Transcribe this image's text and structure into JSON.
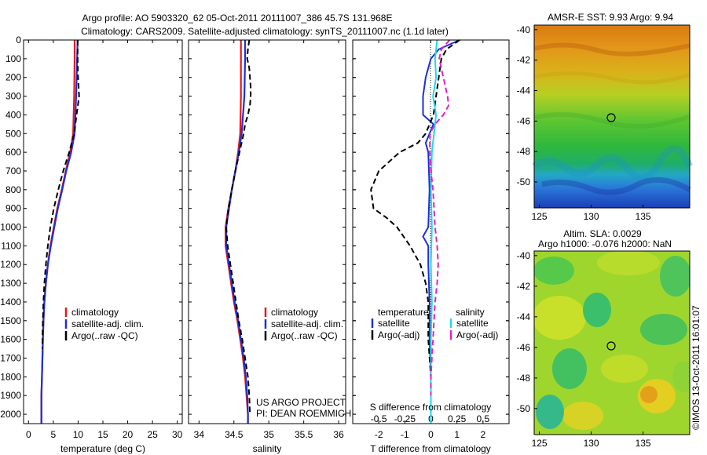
{
  "header": {
    "title_line1": "Argo profile: AO 5903320_62 05-Oct-2011 20111007_386 45.7S 131.968E",
    "title_line2": "Climatology: CARS2009. Satellite-adjusted climatology: synTS_20111007.nc (1.1d later)"
  },
  "colors": {
    "climatology": "#e41a1c",
    "satellite": "#1f2fd6",
    "argo": "#000000",
    "salinity_satellite": "#22d8e6",
    "salinity_argo": "#e020c8"
  },
  "annotations": {
    "project": "US ARGO PROJECT",
    "pi": "PI: DEAN ROEMMICH",
    "stamp": "©IMOS 13-Oct-2011 16:01:07"
  },
  "legend_profile": [
    "climatology",
    "satellite-adj. clim.",
    "Argo(..raw -QC)"
  ],
  "legend_diff": {
    "temperature_head": "temperature",
    "salinity_head": "salinity",
    "t_satellite": "satellite",
    "t_argo": "Argo(-adj)",
    "s_satellite": "satellite",
    "s_argo": "Argo(-adj)"
  },
  "maps": {
    "sst": {
      "title": "AMSR-E SST: 9.93 Argo: 9.94",
      "yticks": [
        "-40",
        "-42",
        "-44",
        "-46",
        "-48",
        "-50"
      ],
      "xticks": [
        "125",
        "130",
        "135"
      ]
    },
    "sla": {
      "title_line1": "Altim. SLA: 0.0029",
      "title_line2": "Argo h1000: -0.076 h2000: NaN",
      "yticks": [
        "-40",
        "-42",
        "-44",
        "-46",
        "-48",
        "-50"
      ],
      "xticks": [
        "125",
        "130",
        "135"
      ]
    }
  },
  "chart_data": [
    {
      "type": "line",
      "name": "temperature profile",
      "xlabel": "temperature (deg C)",
      "ylabel": "",
      "xlim": [
        -1,
        31
      ],
      "ylim": [
        2050,
        0
      ],
      "xticks": [
        0,
        5,
        10,
        15,
        20,
        25,
        30
      ],
      "yticks": [
        0,
        100,
        200,
        300,
        400,
        500,
        600,
        700,
        800,
        900,
        1000,
        1100,
        1200,
        1300,
        1400,
        1500,
        1600,
        1700,
        1800,
        1900,
        2000
      ],
      "series": [
        {
          "name": "climatology",
          "depth": [
            0,
            100,
            300,
            500,
            600,
            700,
            800,
            900,
            1000,
            1100,
            1200,
            1300,
            1400,
            1500,
            1600,
            1700,
            1800,
            1900,
            2000,
            2050
          ],
          "values": [
            9.3,
            9.3,
            9.2,
            9.0,
            8.4,
            7.5,
            6.7,
            5.8,
            5.1,
            4.4,
            3.9,
            3.5,
            3.2,
            3.0,
            2.9,
            2.8,
            2.7,
            2.6,
            2.6,
            2.6
          ]
        },
        {
          "name": "satellite-adj. clim.",
          "depth": [
            0,
            100,
            300,
            500,
            600,
            700,
            800,
            900,
            1000,
            1100,
            1200,
            1300,
            1400,
            1500,
            1600,
            1700,
            1800,
            1900,
            2000,
            2050
          ],
          "values": [
            9.9,
            9.8,
            9.6,
            9.3,
            8.6,
            7.6,
            6.8,
            5.9,
            5.2,
            4.5,
            3.9,
            3.5,
            3.2,
            3.0,
            2.9,
            2.8,
            2.7,
            2.6,
            2.6,
            2.6
          ]
        },
        {
          "name": "Argo(..raw -QC)",
          "depth": [
            0,
            100,
            200,
            300,
            400,
            500,
            600,
            700,
            800,
            900,
            1000,
            1100,
            1200,
            1300,
            1400,
            1500,
            1600,
            1650
          ],
          "values": [
            9.9,
            9.9,
            10.0,
            10.2,
            9.7,
            9.2,
            8.2,
            7.0,
            6.0,
            5.1,
            4.4,
            3.9,
            3.5,
            3.2,
            3.0,
            2.9,
            2.8,
            2.8
          ]
        }
      ]
    },
    {
      "type": "line",
      "name": "salinity profile",
      "xlabel": "salinity",
      "ylabel": "",
      "xlim": [
        33.85,
        36.1
      ],
      "ylim": [
        2050,
        0
      ],
      "xticks": [
        34,
        34.5,
        35,
        35.5,
        36
      ],
      "series": [
        {
          "name": "climatology",
          "depth": [
            0,
            100,
            300,
            500,
            600,
            700,
            800,
            900,
            1000,
            1100,
            1200,
            1300,
            1400,
            1500,
            1600,
            1700,
            1800,
            1900,
            2000,
            2050
          ],
          "values": [
            34.6,
            34.6,
            34.6,
            34.59,
            34.56,
            34.52,
            34.47,
            34.42,
            34.38,
            34.38,
            34.42,
            34.46,
            34.5,
            34.55,
            34.59,
            34.63,
            34.66,
            34.68,
            34.7,
            34.7
          ]
        },
        {
          "name": "satellite-adj. clim.",
          "depth": [
            0,
            100,
            300,
            500,
            600,
            700,
            800,
            900,
            1000,
            1100,
            1200,
            1300,
            1400,
            1500,
            1600,
            1700,
            1800,
            1900,
            2000,
            2050
          ],
          "values": [
            34.66,
            34.66,
            34.65,
            34.61,
            34.57,
            34.52,
            34.47,
            34.43,
            34.39,
            34.39,
            34.43,
            34.47,
            34.51,
            34.56,
            34.6,
            34.64,
            34.67,
            34.69,
            34.7,
            34.7
          ]
        },
        {
          "name": "Argo(..raw -QC)",
          "depth": [
            0,
            50,
            100,
            150,
            200,
            250,
            300,
            350,
            400,
            450,
            500,
            600,
            700,
            800,
            900,
            1000,
            1100,
            1200,
            1300,
            1400,
            1500,
            1600,
            1700,
            1800,
            1900,
            2000
          ],
          "values": [
            34.72,
            34.7,
            34.69,
            34.72,
            34.73,
            34.74,
            34.74,
            34.73,
            34.7,
            34.66,
            34.64,
            34.58,
            34.52,
            34.47,
            34.42,
            34.39,
            34.41,
            34.45,
            34.49,
            34.53,
            34.57,
            34.62,
            34.66,
            34.7,
            34.72,
            34.73
          ]
        }
      ]
    },
    {
      "type": "line",
      "name": "difference from climatology",
      "xlabel": "T difference from climatology",
      "xlabel_top": "S difference from climatology",
      "ylabel": "",
      "xlim": [
        -3,
        3
      ],
      "ylim": [
        2050,
        0
      ],
      "xticks": [
        -2,
        -1,
        0,
        1,
        2
      ],
      "xticks_s": [
        -0.5,
        -0.25,
        0,
        0.25,
        0.5
      ],
      "series": [
        {
          "name": "temperature satellite",
          "depth": [
            0,
            50,
            100,
            150,
            200,
            300,
            400,
            450,
            500,
            550,
            600,
            800,
            1000,
            1050,
            1100,
            1200,
            1400,
            1600,
            1800,
            2050
          ],
          "values": [
            1.1,
            0.3,
            0.0,
            -0.1,
            -0.2,
            -0.3,
            -0.3,
            0.1,
            -0.05,
            -0.2,
            -0.1,
            -0.05,
            -0.1,
            -0.3,
            -0.1,
            -0.1,
            -0.05,
            -0.05,
            0.0,
            0.0
          ]
        },
        {
          "name": "temperature Argo(-adj)",
          "depth": [
            0,
            50,
            100,
            200,
            300,
            400,
            500,
            550,
            600,
            700,
            800,
            900,
            950,
            1000,
            1100,
            1200,
            1300,
            1400,
            1600,
            1800,
            1900
          ],
          "values": [
            1.1,
            0.6,
            0.4,
            0.3,
            0.2,
            0.1,
            -0.2,
            -0.5,
            -1.2,
            -2.0,
            -2.3,
            -2.2,
            -1.7,
            -1.3,
            -0.8,
            -0.4,
            -0.2,
            -0.1,
            -0.1,
            0.0,
            0.0
          ]
        },
        {
          "name": "salinity satellite",
          "depth": [
            0,
            100,
            200,
            300,
            400,
            500,
            600,
            800,
            1000,
            1200,
            1400,
            1600,
            1800,
            2050
          ],
          "values": [
            0.06,
            0.04,
            0.05,
            0.02,
            0.05,
            0.03,
            0.01,
            0.0,
            0.01,
            0.0,
            0.01,
            0.0,
            0.0,
            0.0
          ]
        },
        {
          "name": "salinity Argo(-adj)",
          "depth": [
            0,
            50,
            100,
            200,
            300,
            350,
            400,
            450,
            500,
            600,
            700,
            800,
            1000,
            1100,
            1200,
            1300,
            1400,
            1500,
            1600,
            1700,
            1800,
            1900
          ],
          "values": [
            0.18,
            0.1,
            0.08,
            0.12,
            0.16,
            0.17,
            0.12,
            0.04,
            -0.01,
            -0.01,
            0.0,
            0.02,
            0.04,
            0.06,
            0.07,
            0.06,
            0.04,
            0.03,
            0.02,
            0.01,
            0.0,
            0.0
          ]
        }
      ]
    }
  ]
}
